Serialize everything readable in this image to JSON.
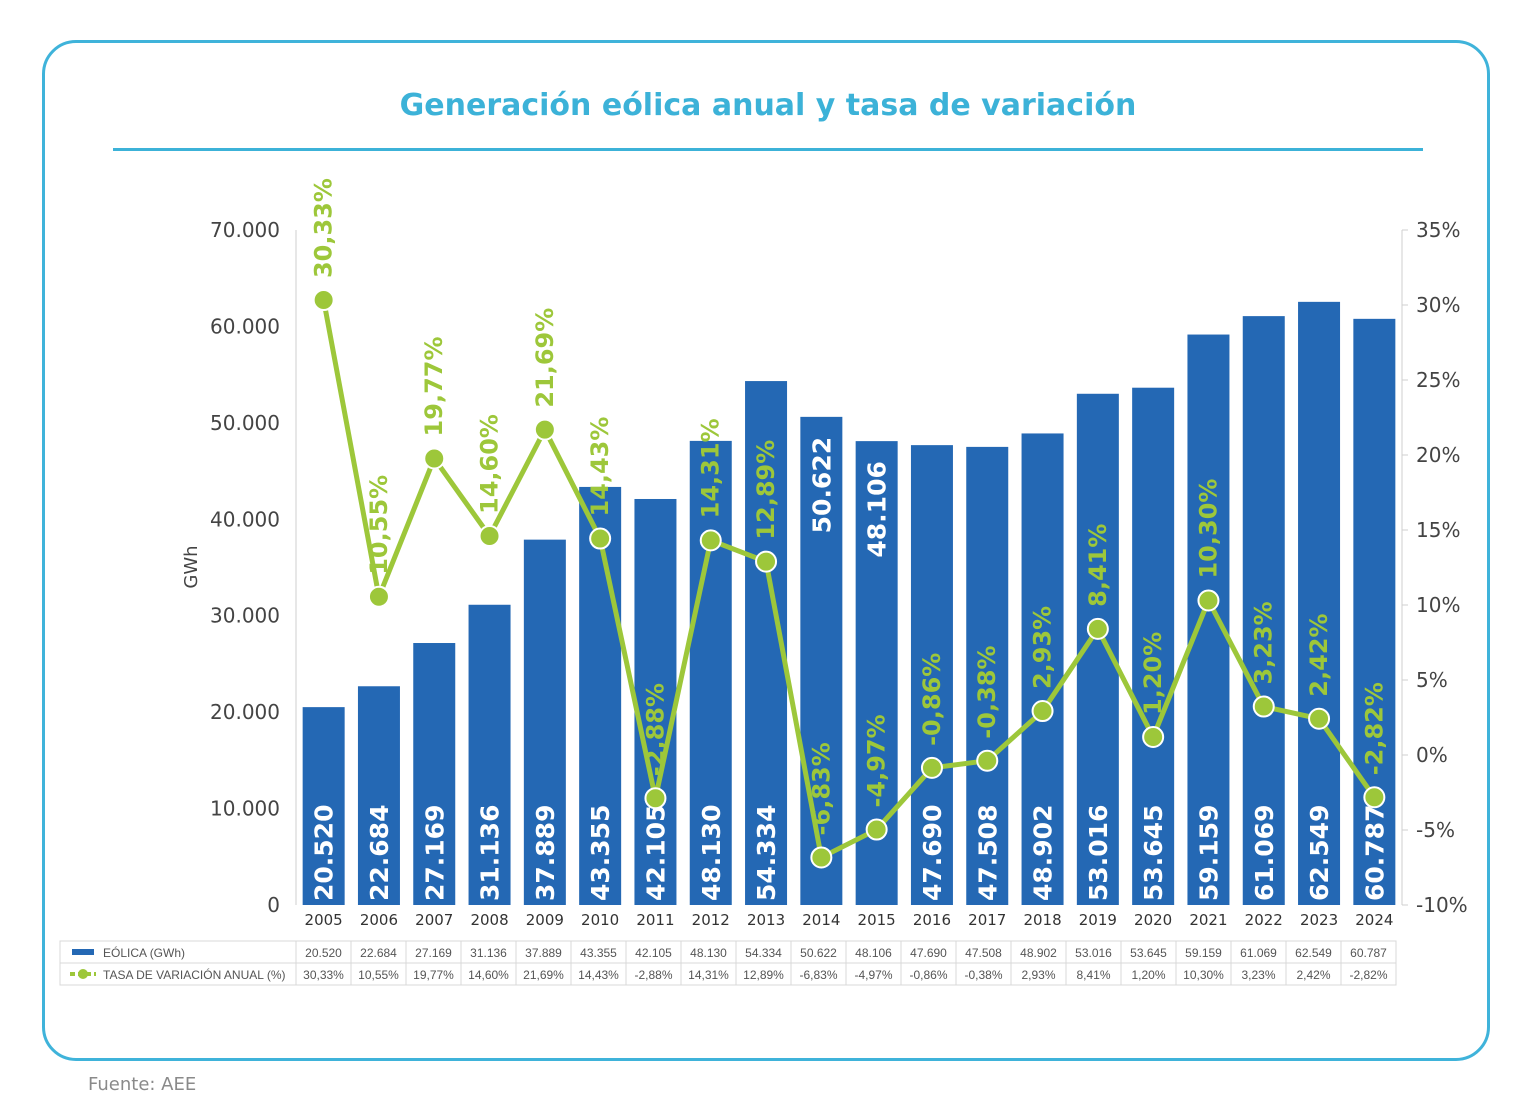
{
  "chart_data": {
    "type": "bar+line",
    "title": "Generación eólica anual y tasa de variación",
    "categories": [
      "2005",
      "2006",
      "2007",
      "2008",
      "2009",
      "2010",
      "2011",
      "2012",
      "2013",
      "2014",
      "2015",
      "2016",
      "2017",
      "2018",
      "2019",
      "2020",
      "2021",
      "2022",
      "2023",
      "2024"
    ],
    "series": [
      {
        "name": "EÓLICA (GWh)",
        "type": "bar",
        "axis": "left",
        "color": "#2468b4",
        "values": [
          20520,
          22684,
          27169,
          31136,
          37889,
          43355,
          42105,
          48130,
          54334,
          50622,
          48106,
          47690,
          47508,
          48902,
          53016,
          53645,
          59159,
          61069,
          62549,
          60787
        ],
        "labels": [
          "20.520",
          "22.684",
          "27.169",
          "31.136",
          "37.889",
          "43.355",
          "42.105",
          "48.130",
          "54.334",
          "50.622",
          "48.106",
          "47.690",
          "47.508",
          "48.902",
          "53.016",
          "53.645",
          "59.159",
          "61.069",
          "62.549",
          "60.787"
        ]
      },
      {
        "name": "TASA DE VARIACIÓN ANUAL (%)",
        "type": "line",
        "axis": "right",
        "color": "#9dc73a",
        "values": [
          30.33,
          10.55,
          19.77,
          14.6,
          21.69,
          14.43,
          -2.88,
          14.31,
          12.89,
          -6.83,
          -4.97,
          -0.86,
          -0.38,
          2.93,
          8.41,
          1.2,
          10.3,
          3.23,
          2.42,
          -2.82
        ],
        "labels": [
          "30,33%",
          "10,55%",
          "19,77%",
          "14,60%",
          "21,69%",
          "14,43%",
          "-2,88%",
          "14,31%",
          "12,89%",
          "-6,83%",
          "-4,97%",
          "-0,86%",
          "-0,38%",
          "2,93%",
          "8,41%",
          "1,20%",
          "10,30%",
          "3,23%",
          "2,42%",
          "-2,82%"
        ]
      }
    ],
    "ylabel": "GWh",
    "ylim": [
      0,
      70000
    ],
    "yticks": [
      "0",
      "10.000",
      "20.000",
      "30.000",
      "40.000",
      "50.000",
      "60.000",
      "70.000"
    ],
    "y2lim": [
      -10,
      35
    ],
    "y2ticks": [
      "-10%",
      "-5%",
      "0%",
      "5%",
      "10%",
      "15%",
      "20%",
      "25%",
      "30%",
      "35%"
    ],
    "grid": false,
    "legend": "data-table-below"
  },
  "source": "Fuente: AEE",
  "colors": {
    "frame": "#3fb3da",
    "bar": "#2468b4",
    "line": "#9dc73a"
  }
}
